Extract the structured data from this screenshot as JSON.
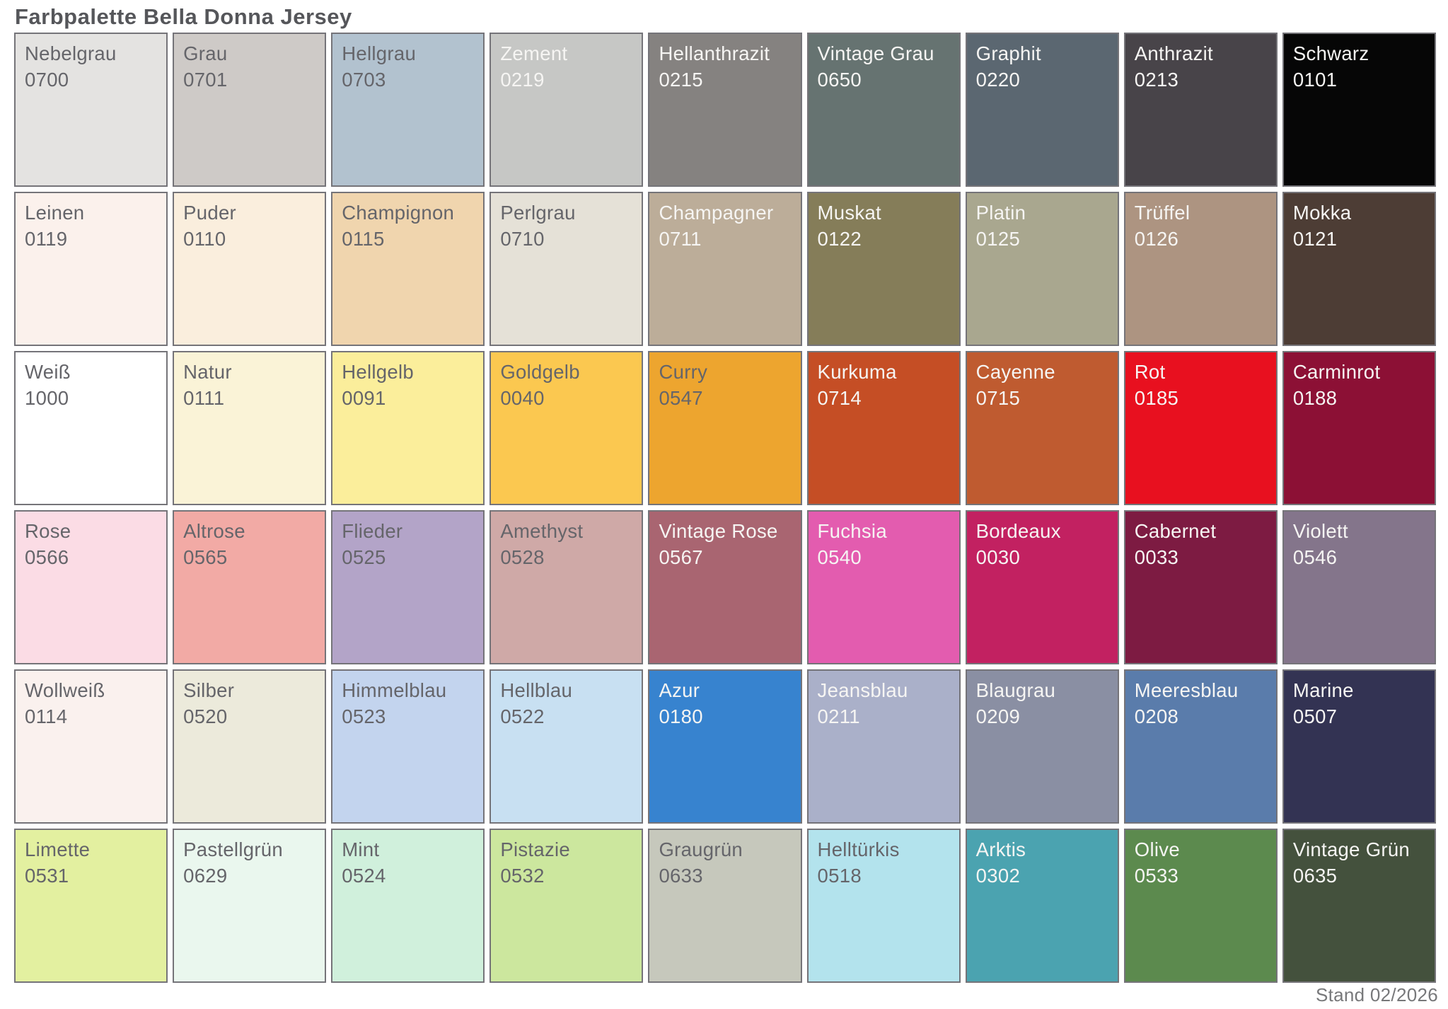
{
  "page": {
    "title": "Farbpalette Bella Donna Jersey",
    "footer": "Stand 02/2026"
  },
  "palette": {
    "columns": 9,
    "rows": 6,
    "swatches": [
      {
        "name": "Nebelgrau",
        "code": "0700",
        "color": "#e4e3e1",
        "text": "dark"
      },
      {
        "name": "Grau",
        "code": "0701",
        "color": "#cecac7",
        "text": "dark"
      },
      {
        "name": "Hellgrau",
        "code": "0703",
        "color": "#b2c2cf",
        "text": "dark"
      },
      {
        "name": "Zement",
        "code": "0219",
        "color": "#c6c7c5",
        "text": "light"
      },
      {
        "name": "Hellanthrazit",
        "code": "0215",
        "color": "#858280",
        "text": "light"
      },
      {
        "name": "Vintage Grau",
        "code": "0650",
        "color": "#667371",
        "text": "light"
      },
      {
        "name": "Graphit",
        "code": "0220",
        "color": "#5b6771",
        "text": "light"
      },
      {
        "name": "Anthrazit",
        "code": "0213",
        "color": "#484449",
        "text": "light"
      },
      {
        "name": "Schwarz",
        "code": "0101",
        "color": "#060606",
        "text": "light"
      },
      {
        "name": "Leinen",
        "code": "0119",
        "color": "#fbf1ec",
        "text": "dark"
      },
      {
        "name": "Puder",
        "code": "0110",
        "color": "#faeedd",
        "text": "dark"
      },
      {
        "name": "Champignon",
        "code": "0115",
        "color": "#f0d5ae",
        "text": "dark"
      },
      {
        "name": "Perlgrau",
        "code": "0710",
        "color": "#e5e1d7",
        "text": "dark"
      },
      {
        "name": "Champagner",
        "code": "0711",
        "color": "#bcad99",
        "text": "light"
      },
      {
        "name": "Muskat",
        "code": "0122",
        "color": "#857d59",
        "text": "light"
      },
      {
        "name": "Platin",
        "code": "0125",
        "color": "#a9a78f",
        "text": "light"
      },
      {
        "name": "Trüffel",
        "code": "0126",
        "color": "#ad9481",
        "text": "light"
      },
      {
        "name": "Mokka",
        "code": "0121",
        "color": "#4d3d35",
        "text": "light"
      },
      {
        "name": "Weiß",
        "code": "1000",
        "color": "#ffffff",
        "text": "dark"
      },
      {
        "name": "Natur",
        "code": "0111",
        "color": "#faf3d7",
        "text": "dark"
      },
      {
        "name": "Hellgelb",
        "code": "0091",
        "color": "#fbee9b",
        "text": "dark"
      },
      {
        "name": "Goldgelb",
        "code": "0040",
        "color": "#fbc850",
        "text": "dark"
      },
      {
        "name": "Curry",
        "code": "0547",
        "color": "#eda52f",
        "text": "dark"
      },
      {
        "name": "Kurkuma",
        "code": "0714",
        "color": "#c54e25",
        "text": "light"
      },
      {
        "name": "Cayenne",
        "code": "0715",
        "color": "#bf5b30",
        "text": "light"
      },
      {
        "name": "Rot",
        "code": "0185",
        "color": "#e8101f",
        "text": "light"
      },
      {
        "name": "Carminrot",
        "code": "0188",
        "color": "#8c1035",
        "text": "light"
      },
      {
        "name": "Rose",
        "code": "0566",
        "color": "#fbdce5",
        "text": "dark"
      },
      {
        "name": "Altrose",
        "code": "0565",
        "color": "#f2aaa5",
        "text": "dark"
      },
      {
        "name": "Flieder",
        "code": "0525",
        "color": "#b3a4c8",
        "text": "dark"
      },
      {
        "name": "Amethyst",
        "code": "0528",
        "color": "#cfa9a7",
        "text": "dark"
      },
      {
        "name": "Vintage Rose",
        "code": "0567",
        "color": "#a96571",
        "text": "light"
      },
      {
        "name": "Fuchsia",
        "code": "0540",
        "color": "#e35caf",
        "text": "light"
      },
      {
        "name": "Bordeaux",
        "code": "0030",
        "color": "#c22161",
        "text": "light"
      },
      {
        "name": "Cabernet",
        "code": "0033",
        "color": "#7d1b42",
        "text": "light"
      },
      {
        "name": "Violett",
        "code": "0546",
        "color": "#84758b",
        "text": "light"
      },
      {
        "name": "Wollweiß",
        "code": "0114",
        "color": "#faf1ee",
        "text": "dark"
      },
      {
        "name": "Silber",
        "code": "0520",
        "color": "#eceadb",
        "text": "dark"
      },
      {
        "name": "Himmelblau",
        "code": "0523",
        "color": "#c3d4ee",
        "text": "dark"
      },
      {
        "name": "Hellblau",
        "code": "0522",
        "color": "#c8e0f2",
        "text": "dark"
      },
      {
        "name": "Azur",
        "code": "0180",
        "color": "#3783cf",
        "text": "light"
      },
      {
        "name": "Jeansblau",
        "code": "0211",
        "color": "#aab0c9",
        "text": "light"
      },
      {
        "name": "Blaugrau",
        "code": "0209",
        "color": "#8a8fa3",
        "text": "light"
      },
      {
        "name": "Meeresblau",
        "code": "0208",
        "color": "#5a7cab",
        "text": "light"
      },
      {
        "name": "Marine",
        "code": "0507",
        "color": "#333353",
        "text": "light"
      },
      {
        "name": "Limette",
        "code": "0531",
        "color": "#e3f0a0",
        "text": "dark"
      },
      {
        "name": "Pastellgrün",
        "code": "0629",
        "color": "#eaf7ee",
        "text": "dark"
      },
      {
        "name": "Mint",
        "code": "0524",
        "color": "#d0f0dc",
        "text": "dark"
      },
      {
        "name": "Pistazie",
        "code": "0532",
        "color": "#cce79e",
        "text": "dark"
      },
      {
        "name": "Graugrün",
        "code": "0633",
        "color": "#c6c8bc",
        "text": "dark"
      },
      {
        "name": "Helltürkis",
        "code": "0518",
        "color": "#b3e3ed",
        "text": "dark"
      },
      {
        "name": "Arktis",
        "code": "0302",
        "color": "#4ba3b0",
        "text": "light"
      },
      {
        "name": "Olive",
        "code": "0533",
        "color": "#5c8a4e",
        "text": "light"
      },
      {
        "name": "Vintage Grün",
        "code": "0635",
        "color": "#44513d",
        "text": "light"
      }
    ]
  }
}
